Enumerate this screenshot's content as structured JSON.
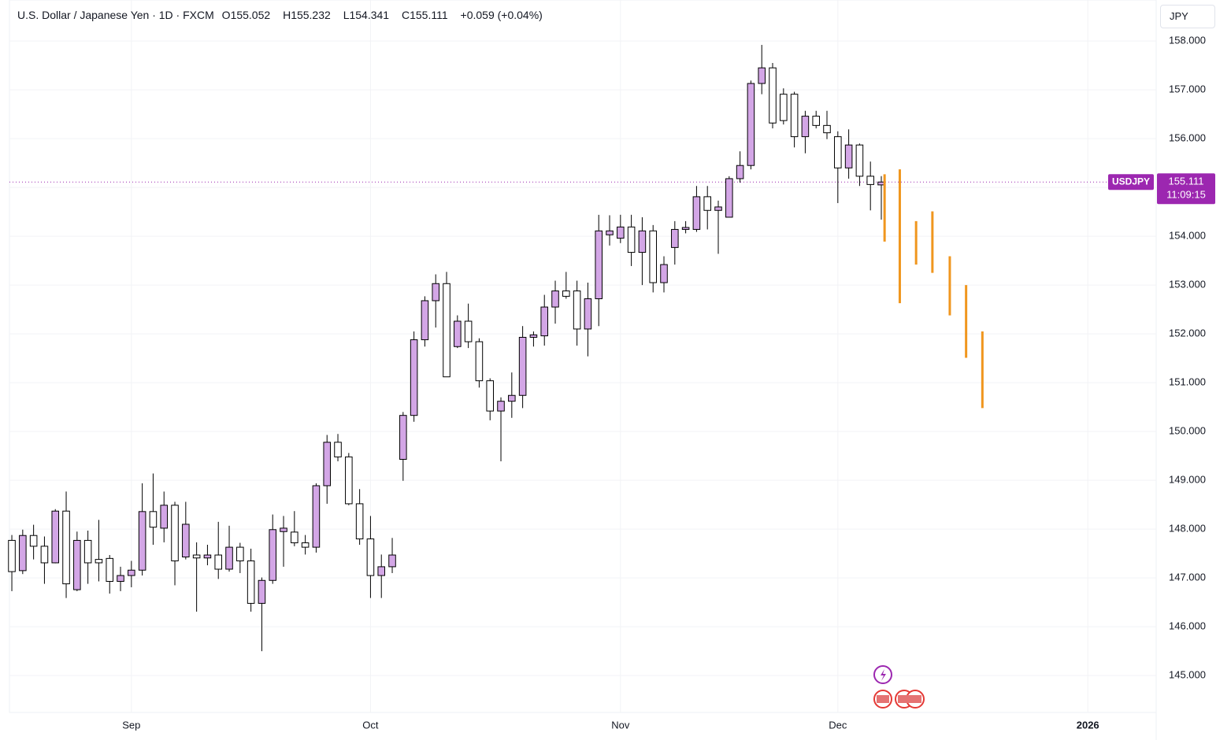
{
  "header": {
    "title": "U.S. Dollar / Japanese Yen · 1D · FXCM",
    "ohlc": [
      {
        "key": "O",
        "value": 155.052
      },
      {
        "key": "H",
        "value": 155.232
      },
      {
        "key": "L",
        "value": 154.341
      },
      {
        "key": "C",
        "value": 155.111
      }
    ],
    "change": "+0.059 (+0.04%)",
    "currency": "JPY"
  },
  "chart_data": {
    "type": "candlestick",
    "x": [
      0,
      1,
      2,
      3,
      4,
      5,
      6,
      7,
      8,
      9,
      10,
      11,
      12,
      13,
      14,
      15,
      16,
      17,
      18,
      19,
      20,
      21,
      22,
      23,
      24,
      25,
      26,
      27,
      28,
      29,
      30,
      31,
      32,
      33,
      34,
      35,
      36,
      37,
      38,
      39,
      40,
      41,
      42,
      43,
      44,
      45,
      46,
      47,
      48,
      49,
      50,
      51,
      52,
      53,
      54,
      55,
      56,
      57,
      58,
      59,
      60,
      61,
      62,
      63,
      64,
      65,
      66,
      67,
      68,
      69,
      70,
      71,
      72,
      73,
      74,
      75,
      76,
      77,
      78,
      79,
      80
    ],
    "open": [
      147.77,
      147.15,
      147.87,
      147.65,
      147.31,
      148.37,
      146.76,
      147.77,
      147.38,
      147.4,
      146.93,
      147.05,
      147.16,
      148.36,
      148.02,
      148.49,
      147.43,
      147.47,
      147.41,
      147.47,
      147.18,
      147.63,
      147.35,
      146.48,
      146.95,
      147.95,
      147.94,
      147.72,
      147.63,
      148.89,
      149.78,
      149.48,
      148.52,
      147.8,
      147.05,
      147.23,
      149.43,
      150.33,
      151.88,
      152.68,
      153.03,
      151.74,
      152.26,
      151.84,
      151.04,
      150.42,
      150.62,
      150.74,
      151.93,
      151.96,
      152.55,
      152.88,
      152.88,
      152.1,
      152.72,
      154.03,
      153.96,
      154.19,
      153.67,
      154.11,
      153.05,
      153.77,
      154.14,
      154.14,
      154.81,
      154.53,
      154.39,
      155.18,
      155.45,
      157.13,
      157.45,
      156.91,
      156.91,
      156.04,
      156.46,
      156.27,
      156.04,
      155.4,
      155.87,
      155.23,
      155.052
    ],
    "high": [
      147.88,
      147.99,
      148.09,
      147.85,
      148.41,
      148.77,
      147.95,
      147.97,
      148.19,
      147.47,
      147.23,
      147.35,
      148.94,
      149.14,
      148.77,
      148.56,
      148.56,
      147.73,
      147.68,
      148.15,
      148.07,
      147.72,
      147.6,
      147.01,
      148.3,
      148.27,
      148.37,
      147.88,
      148.94,
      149.93,
      149.95,
      149.56,
      148.82,
      148.27,
      147.48,
      147.82,
      150.4,
      152.05,
      152.77,
      153.22,
      153.27,
      152.38,
      152.62,
      151.91,
      151.09,
      150.7,
      151.21,
      152.16,
      152.05,
      152.8,
      153.09,
      153.27,
      153.09,
      153.05,
      154.44,
      154.43,
      154.44,
      154.44,
      154.39,
      154.23,
      153.59,
      154.31,
      154.31,
      155.03,
      155.03,
      154.73,
      155.23,
      155.74,
      157.19,
      157.92,
      157.55,
      157.03,
      156.96,
      156.57,
      156.57,
      156.57,
      156.15,
      156.19,
      155.9,
      155.53,
      155.232
    ],
    "low": [
      146.73,
      147.08,
      147.38,
      146.88,
      147.3,
      146.59,
      146.73,
      146.88,
      146.93,
      146.68,
      146.73,
      146.81,
      147.05,
      147.68,
      147.73,
      146.85,
      147.38,
      146.31,
      147.26,
      146.98,
      147.13,
      147.1,
      146.31,
      145.5,
      146.88,
      147.23,
      147.65,
      147.48,
      147.52,
      148.52,
      149.39,
      148.49,
      147.68,
      146.59,
      146.59,
      147.1,
      148.99,
      150.2,
      151.74,
      152.13,
      151.12,
      151.71,
      151.71,
      150.9,
      150.23,
      149.39,
      150.28,
      150.48,
      151.74,
      151.76,
      152.21,
      152.72,
      151.76,
      151.54,
      152.16,
      153.81,
      153.86,
      153.39,
      153.0,
      152.85,
      152.85,
      153.42,
      154.06,
      154.09,
      154.14,
      153.64,
      154.39,
      155.1,
      155.37,
      156.91,
      156.21,
      156.29,
      155.82,
      155.7,
      156.21,
      155.99,
      154.68,
      155.18,
      155.03,
      154.53,
      154.341
    ],
    "close": [
      147.13,
      147.87,
      147.65,
      147.31,
      148.37,
      146.88,
      147.77,
      147.31,
      147.31,
      146.93,
      147.05,
      147.16,
      148.36,
      148.04,
      148.49,
      147.35,
      148.1,
      147.41,
      147.47,
      147.18,
      147.63,
      147.35,
      146.48,
      146.95,
      147.99,
      148.02,
      147.72,
      147.63,
      148.89,
      149.78,
      149.48,
      148.52,
      147.8,
      147.05,
      147.23,
      147.47,
      150.33,
      151.88,
      152.68,
      153.03,
      151.12,
      152.26,
      151.84,
      151.04,
      150.42,
      150.62,
      150.74,
      151.93,
      151.98,
      152.55,
      152.88,
      152.77,
      152.1,
      152.72,
      154.11,
      154.11,
      154.19,
      153.67,
      154.11,
      153.05,
      153.42,
      154.14,
      154.18,
      154.81,
      154.53,
      154.6,
      155.18,
      155.45,
      157.13,
      157.45,
      156.32,
      156.37,
      156.04,
      156.46,
      156.27,
      156.12,
      155.4,
      155.87,
      155.23,
      155.06,
      155.111
    ],
    "up_color": "#d3a6e6",
    "down_color": "#ffffff",
    "border_color": "#000000",
    "forecast": {
      "color": "#f0961e",
      "x": [
        80.3,
        81.7,
        83.2,
        84.7,
        86.3,
        87.8,
        89.3
      ],
      "high": [
        155.27,
        155.37,
        154.31,
        154.51,
        153.59,
        153.0,
        152.05
      ],
      "low": [
        153.89,
        152.63,
        153.42,
        153.25,
        152.38,
        151.51,
        150.48
      ]
    },
    "last_price": {
      "symbol": "USDJPY",
      "value": 155.111,
      "countdown": "11:09:15",
      "color": "#9c27b0"
    },
    "xlim": [
      -0.22,
      105.29
    ],
    "xticks": [
      {
        "value": 11,
        "label": "Sep"
      },
      {
        "value": 33,
        "label": "Oct"
      },
      {
        "value": 56,
        "label": "Nov"
      },
      {
        "value": 76,
        "label": "Dec"
      },
      {
        "value": 99,
        "label": "2026"
      }
    ],
    "ylim": [
      144.245,
      158.84
    ],
    "yticks": [
      {
        "value": 145,
        "label": "145.000"
      },
      {
        "value": 146,
        "label": "146.000"
      },
      {
        "value": 147,
        "label": "147.000"
      },
      {
        "value": 148,
        "label": "148.000"
      },
      {
        "value": 149,
        "label": "149.000"
      },
      {
        "value": 150,
        "label": "150.000"
      },
      {
        "value": 151,
        "label": "151.000"
      },
      {
        "value": 152,
        "label": "152.000"
      },
      {
        "value": 153,
        "label": "153.000"
      },
      {
        "value": 154,
        "label": "154.000"
      },
      {
        "value": 155,
        "label": "155.000"
      },
      {
        "value": 156,
        "label": "156.000"
      },
      {
        "value": 157,
        "label": "157.000"
      },
      {
        "value": 158,
        "label": "158.000"
      }
    ],
    "grid": true
  }
}
